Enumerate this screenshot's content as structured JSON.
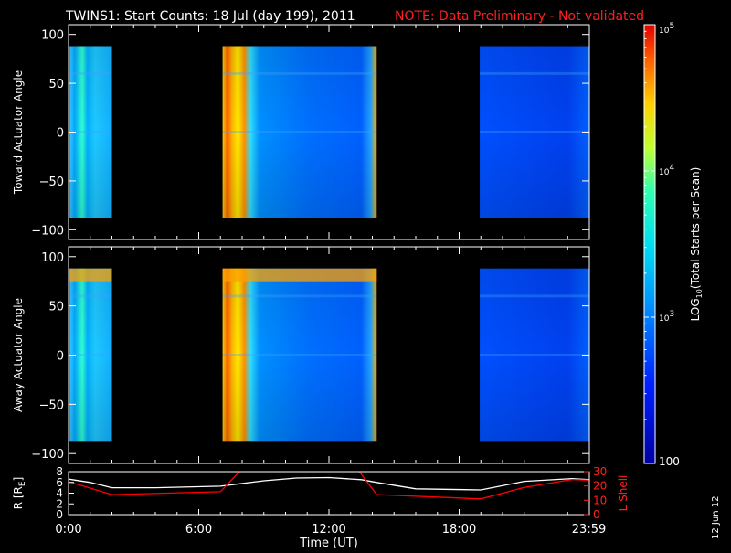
{
  "title": "TWINS1: Start Counts: 18 Jul (day 199), 2011",
  "note": "NOTE: Data Preliminary - Not validated",
  "date_stamp": "12 Jun 12",
  "colorbar": {
    "label_parts": [
      "LOG",
      "10",
      "(Total Starts per Scan)"
    ],
    "ticks": [
      {
        "value": 100,
        "base": "100",
        "exp": ""
      },
      {
        "value": 1000,
        "base": "10",
        "exp": "3"
      },
      {
        "value": 10000,
        "base": "10",
        "exp": "4"
      },
      {
        "value": 100000,
        "base": "10",
        "exp": "5"
      }
    ],
    "range": [
      100,
      100000
    ],
    "scale": "log"
  },
  "chart_data": [
    {
      "type": "heatmap",
      "ylabel": "Toward Actuator Angle",
      "xlim": [
        0,
        24
      ],
      "ylim": [
        -110,
        110
      ],
      "yticks": [
        -100,
        -50,
        0,
        50,
        100
      ],
      "data_y_range": [
        -88,
        88
      ],
      "segments": [
        {
          "x_start": 0.05,
          "x_end": 2.0
        },
        {
          "x_start": 7.1,
          "x_end": 14.2
        },
        {
          "x_start": 18.95,
          "x_end": 23.99
        }
      ]
    },
    {
      "type": "heatmap",
      "ylabel": "Away Actuator Angle",
      "xlim": [
        0,
        24
      ],
      "ylim": [
        -110,
        110
      ],
      "yticks": [
        -100,
        -50,
        0,
        50,
        100
      ],
      "data_y_range": [
        -88,
        88
      ],
      "segments": [
        {
          "x_start": 0.05,
          "x_end": 2.0
        },
        {
          "x_start": 7.1,
          "x_end": 14.2
        },
        {
          "x_start": 18.95,
          "x_end": 23.99
        }
      ]
    },
    {
      "type": "line",
      "xlabel": "Time (UT)",
      "xlim": [
        0,
        24
      ],
      "xticks": [
        {
          "value": 0,
          "label": "0:00"
        },
        {
          "value": 6,
          "label": "6:00"
        },
        {
          "value": 12,
          "label": "12:00"
        },
        {
          "value": 18,
          "label": "18:00"
        },
        {
          "value": 23.98,
          "label": "23:59"
        }
      ],
      "left_axis": {
        "label_main": "R [R",
        "label_sub": "E",
        "label_end": "]",
        "ylim": [
          0,
          8
        ],
        "ticks": [
          0,
          2,
          4,
          6,
          8
        ]
      },
      "right_axis": {
        "label": "L Shell",
        "ylim": [
          0,
          30
        ],
        "ticks": [
          0,
          10,
          20,
          30
        ]
      },
      "series": [
        {
          "axis": "left",
          "color": "#ffffff",
          "x": [
            0,
            1,
            2,
            4,
            7,
            9,
            10.5,
            12,
            13.5,
            14.2,
            16,
            19,
            21,
            23.2,
            24
          ],
          "y": [
            6.6,
            6.0,
            5.0,
            5.0,
            5.3,
            6.3,
            6.8,
            6.9,
            6.5,
            6.0,
            4.8,
            4.6,
            6.2,
            6.7,
            6.5
          ]
        },
        {
          "axis": "right",
          "color": "#ff0000",
          "x": [
            0,
            2,
            7,
            8.5,
            12.9,
            14.2,
            19,
            21,
            23.2,
            24
          ],
          "y": [
            23,
            14,
            16,
            40,
            40,
            14,
            11,
            19,
            24.5,
            24
          ]
        }
      ]
    }
  ]
}
